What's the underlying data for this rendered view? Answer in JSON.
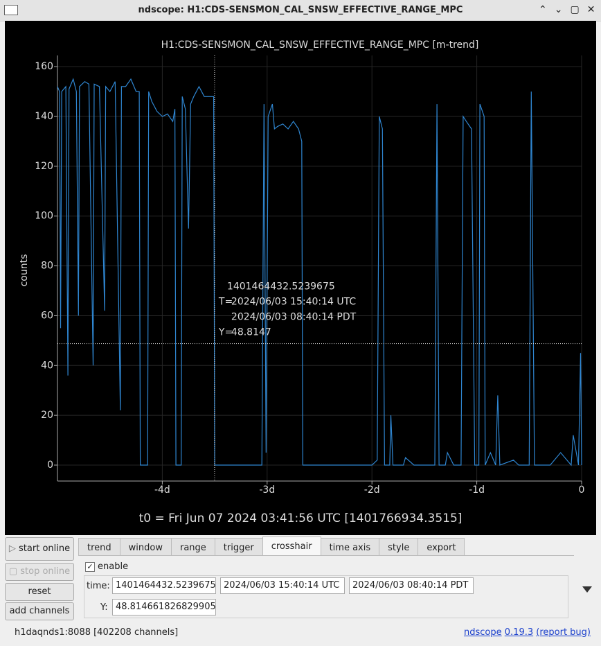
{
  "window": {
    "title": "ndscope: H1:CDS-SENSMON_CAL_SNSW_EFFECTIVE_RANGE_MPC"
  },
  "chart_data": {
    "type": "line",
    "title": "H1:CDS-SENSMON_CAL_SNSW_EFFECTIVE_RANGE_MPC [m-trend]",
    "ylabel": "counts",
    "xlabel": "t0 = Fri Jun 07 2024 03:41:56 UTC [1401766934.3515]",
    "color": "#2f86d1",
    "grid": true,
    "xlim": [
      -5.0,
      0
    ],
    "ylim": [
      -6.4,
      164.5
    ],
    "xticks": [
      {
        "value": -4,
        "label": "-4d"
      },
      {
        "value": -3,
        "label": "-3d"
      },
      {
        "value": -2,
        "label": "-2d"
      },
      {
        "value": -1,
        "label": "-1d"
      },
      0
    ],
    "yticks": [
      0,
      20,
      40,
      60,
      80,
      100,
      120,
      140,
      160
    ],
    "x": [
      -5.0,
      -4.98,
      -4.97,
      -4.96,
      -4.92,
      -4.9,
      -4.89,
      -4.85,
      -4.82,
      -4.8,
      -4.79,
      -4.74,
      -4.7,
      -4.66,
      -4.65,
      -4.6,
      -4.55,
      -4.54,
      -4.5,
      -4.45,
      -4.4,
      -4.39,
      -4.35,
      -4.3,
      -4.25,
      -4.22,
      -4.21,
      -4.14,
      -4.13,
      -4.1,
      -4.05,
      -4.0,
      -3.95,
      -3.9,
      -3.88,
      -3.87,
      -3.82,
      -3.81,
      -3.78,
      -3.75,
      -3.73,
      -3.7,
      -3.65,
      -3.6,
      -3.51,
      -3.5,
      -3.05,
      -3.03,
      -3.01,
      -2.99,
      -2.95,
      -2.93,
      -2.9,
      -2.85,
      -2.8,
      -2.75,
      -2.7,
      -2.67,
      -2.66,
      -2.0,
      -1.95,
      -1.93,
      -1.9,
      -1.88,
      -1.83,
      -1.82,
      -1.8,
      -1.7,
      -1.68,
      -1.6,
      -1.4,
      -1.38,
      -1.36,
      -1.3,
      -1.28,
      -1.22,
      -1.15,
      -1.13,
      -1.1,
      -1.05,
      -1.02,
      -0.98,
      -0.97,
      -0.93,
      -0.92,
      -0.87,
      -0.82,
      -0.8,
      -0.78,
      -0.65,
      -0.6,
      -0.5,
      -0.48,
      -0.45,
      -0.3,
      -0.2,
      -0.1,
      -0.08,
      -0.03,
      -0.01,
      0
    ],
    "values": [
      152,
      150,
      55,
      150,
      152,
      36,
      151,
      155,
      150,
      60,
      152,
      154,
      153,
      40,
      153,
      152,
      62,
      152,
      150,
      154,
      22,
      152,
      152,
      155,
      150,
      150,
      0,
      0,
      150,
      146,
      142,
      140,
      141,
      138,
      143,
      0,
      0,
      148,
      143,
      95,
      145,
      148,
      152,
      148,
      148,
      0,
      0,
      145,
      5,
      140,
      145,
      135,
      136,
      137,
      135,
      138,
      135,
      130,
      0,
      0,
      2,
      140,
      135,
      0,
      0,
      20,
      0,
      0,
      3,
      0,
      0,
      145,
      0,
      0,
      5,
      0,
      0,
      140,
      138,
      135,
      0,
      0,
      145,
      140,
      0,
      5,
      0,
      28,
      0,
      2,
      0,
      0,
      150,
      0,
      0,
      5,
      0,
      12,
      0,
      45,
      0
    ],
    "crosshair": {
      "x": -3.5012,
      "y": 48.814661826829905,
      "gps": "1401464432.5239675",
      "t_prefix": "T=",
      "utc": "2024/06/03 15:40:14 UTC",
      "pdt": "2024/06/03 08:40:14 PDT",
      "y_prefix": "Y=",
      "y_label": "48.8147"
    }
  },
  "buttons": [
    "start online",
    "stop online",
    "reset",
    "add channels"
  ],
  "tabs": [
    "trend",
    "window",
    "range",
    "trigger",
    "crosshair",
    "time axis",
    "style",
    "export"
  ],
  "crosshair_panel": {
    "enable": "enable",
    "time_label": "time:",
    "gps": "1401464432.5239675",
    "utc": "2024/06/03 15:40:14 UTC",
    "pdt": "2024/06/03 08:40:14 PDT",
    "y_label": "Y:",
    "y": "48.814661826829905"
  },
  "status": {
    "server": "h1daqnds1:8088  [402208 channels]",
    "app": "ndscope",
    "version": "0.19.3",
    "report": "(report bug)"
  }
}
